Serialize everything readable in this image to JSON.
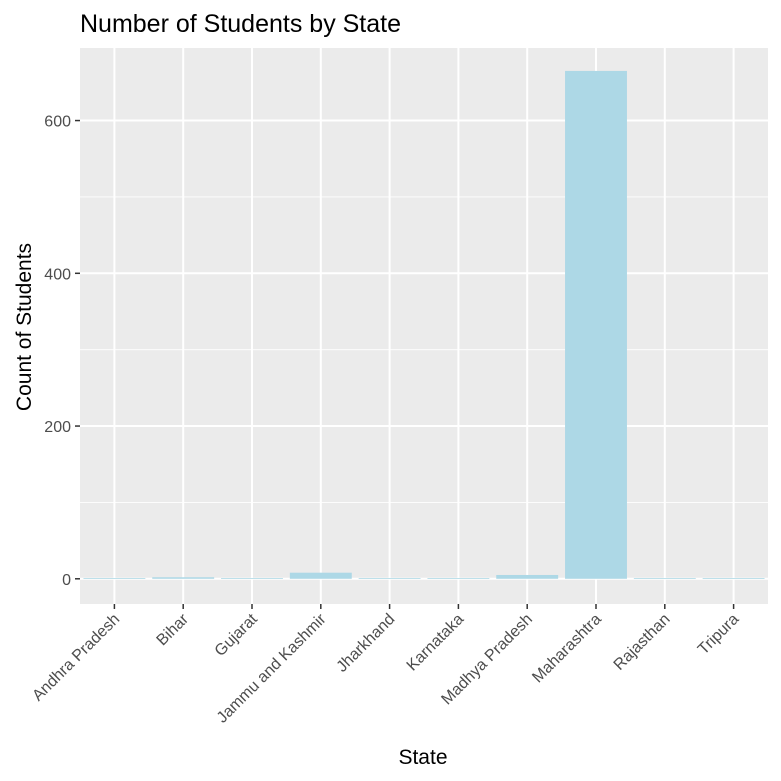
{
  "chart_data": {
    "type": "bar",
    "title": "Number of Students by State",
    "xlabel": "State",
    "ylabel": "Count of Students",
    "categories": [
      "Andhra Pradesh",
      "Bihar",
      "Gujarat",
      "Jammu and Kashmir",
      "Jharkhand",
      "Karnataka",
      "Madhya Pradesh",
      "Maharashtra",
      "Rajasthan",
      "Tripura"
    ],
    "values": [
      1,
      2,
      1,
      8,
      1,
      1,
      5,
      665,
      1,
      1
    ],
    "ylim": [
      -33,
      695
    ],
    "yticks": [
      0,
      200,
      400,
      600
    ],
    "grid": true,
    "legend": "none",
    "bar_color": "#add8e6",
    "panel_background": "#ebebeb",
    "grid_color": "#ffffff"
  }
}
